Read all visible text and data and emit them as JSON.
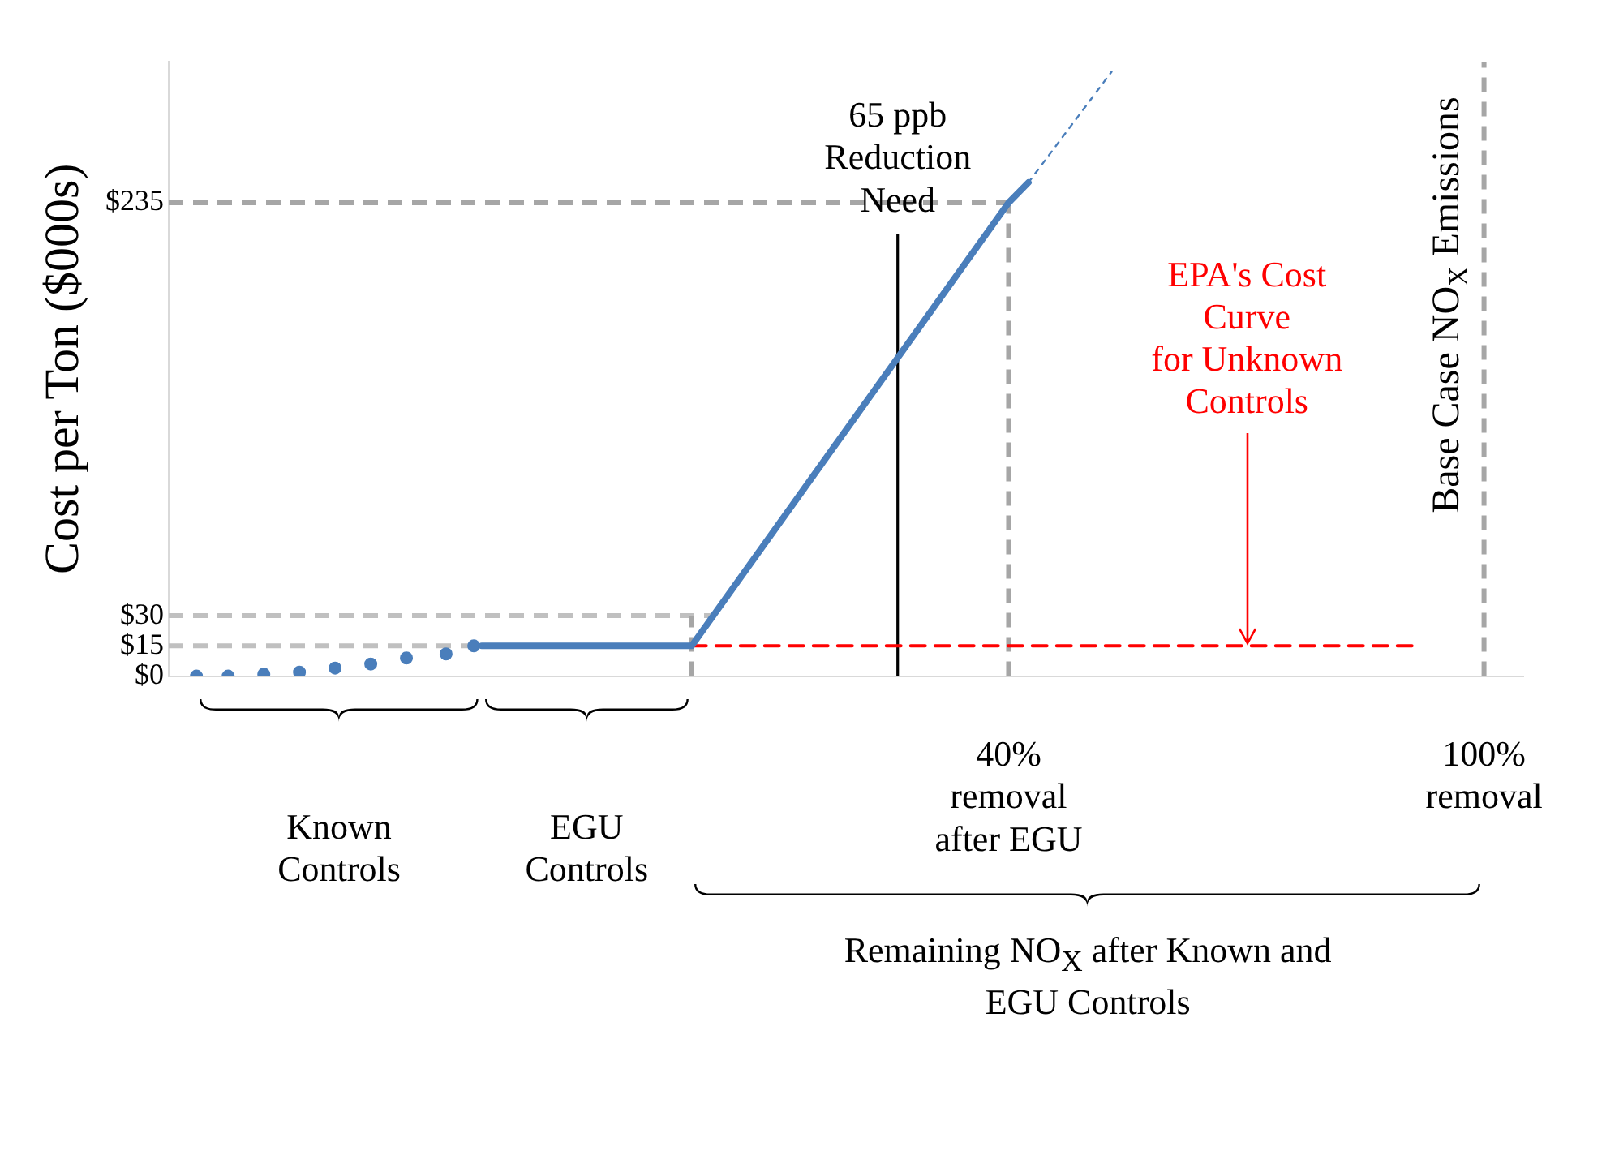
{
  "chart_data": {
    "type": "line",
    "ylabel": "Cost per Ton ($000s)",
    "xlim": [
      -66,
      105
    ],
    "ylim": [
      0,
      305
    ],
    "xticks": [
      {
        "value": 40,
        "label": "40%\nremoval\nafter EGU"
      },
      {
        "value": 100,
        "label": "100%\nremoval"
      }
    ],
    "yticks": [
      {
        "value": 0,
        "label": "$0"
      },
      {
        "value": 15,
        "label": "$15"
      },
      {
        "value": 30,
        "label": "$30"
      },
      {
        "value": 235,
        "label": "$235"
      }
    ],
    "grid": false,
    "legend": false,
    "series": [
      {
        "type": "scatter",
        "marker": "circle",
        "color": "#4a7ebb",
        "x": [
          -62.5,
          -58.5,
          -54,
          -49.5,
          -45,
          -40.5,
          -36,
          -31,
          -27.5
        ],
        "values": [
          0,
          0,
          1,
          2,
          4,
          6,
          9,
          11,
          15
        ]
      },
      {
        "type": "line",
        "marker": "none",
        "color": "#4a7ebb",
        "x": [
          -26.5,
          0,
          40,
          42.5
        ],
        "values": [
          15,
          15,
          235,
          245
        ]
      },
      {
        "type": "line",
        "marker": "none",
        "line_style": "dotted",
        "color": "#4a7ebb",
        "x": [
          42.5,
          53
        ],
        "values": [
          245,
          300
        ]
      },
      {
        "type": "line",
        "marker": "none",
        "line_style": "dashed",
        "name": "EPA's Cost Curve for Unknown Controls",
        "color": "#ff0000",
        "x": [
          0,
          91
        ],
        "values": [
          15,
          15
        ]
      }
    ],
    "ref_lines": [
      {
        "axis": "y",
        "value": 235,
        "color": "#a6a6a6",
        "line_style": "dashed"
      },
      {
        "axis": "y",
        "value": 30,
        "color": "#c0c0c0",
        "line_style": "dashed"
      },
      {
        "axis": "y",
        "value": 15,
        "color": "#c0c0c0",
        "line_style": "dashed"
      },
      {
        "axis": "x",
        "value": 0,
        "color": "#a6a6a6",
        "line_style": "dashed"
      },
      {
        "axis": "x",
        "value": 40,
        "color": "#a6a6a6",
        "line_style": "dashed"
      },
      {
        "axis": "x",
        "value": 26,
        "color": "#000000",
        "line_style": "solid",
        "label": "65 ppb\nReduction\nNeed"
      },
      {
        "axis": "x",
        "value": 100,
        "color": "#a6a6a6",
        "line_style": "dashed",
        "label": "Base Case NO$_{X}$ Emissions"
      }
    ],
    "annotations": [
      "Known\nControls",
      "EGU\nControls",
      "Remaining NO$_{X}$ after Known and\nEGU Controls"
    ]
  }
}
